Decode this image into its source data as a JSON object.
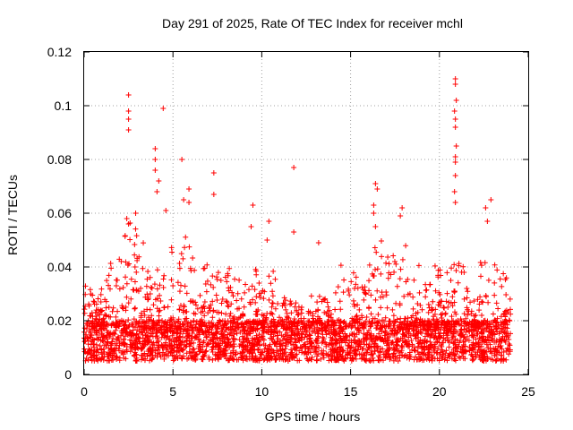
{
  "chart_data": {
    "type": "scatter",
    "title": "Day 291 of 2025, Rate Of TEC Index for receiver mchl",
    "xlabel": "GPS time / hours",
    "ylabel": "ROTI / TECUs",
    "xlim": [
      0,
      25
    ],
    "ylim": [
      0,
      0.12
    ],
    "x_ticks": [
      "0",
      "5",
      "10",
      "15",
      "20",
      "25"
    ],
    "y_ticks": [
      "0",
      "0.02",
      "0.04",
      "0.06",
      "0.08",
      "0.1",
      "0.12"
    ],
    "x_tick_values": [
      0,
      5,
      10,
      15,
      20,
      25
    ],
    "y_tick_values": [
      0,
      0.02,
      0.04,
      0.06,
      0.08,
      0.1,
      0.12
    ],
    "grid": true,
    "marker": "+",
    "series_color": "#ff0000",
    "series": [
      {
        "name": "ROTI",
        "x_range": [
          0,
          24
        ],
        "baseline_band": [
          0.005,
          0.02
        ],
        "envelope": [
          [
            0.0,
            0.045
          ],
          [
            0.5,
            0.03
          ],
          [
            1.0,
            0.035
          ],
          [
            1.5,
            0.045
          ],
          [
            2.0,
            0.048
          ],
          [
            2.5,
            0.06
          ],
          [
            3.0,
            0.055
          ],
          [
            3.5,
            0.05
          ],
          [
            4.0,
            0.055
          ],
          [
            4.5,
            0.05
          ],
          [
            5.0,
            0.048
          ],
          [
            5.5,
            0.05
          ],
          [
            6.0,
            0.055
          ],
          [
            6.5,
            0.045
          ],
          [
            7.0,
            0.042
          ],
          [
            7.5,
            0.04
          ],
          [
            8.0,
            0.042
          ],
          [
            8.5,
            0.04
          ],
          [
            9.0,
            0.038
          ],
          [
            9.5,
            0.045
          ],
          [
            10.0,
            0.035
          ],
          [
            10.5,
            0.045
          ],
          [
            11.0,
            0.032
          ],
          [
            11.5,
            0.03
          ],
          [
            12.0,
            0.03
          ],
          [
            12.5,
            0.032
          ],
          [
            13.0,
            0.035
          ],
          [
            13.5,
            0.033
          ],
          [
            14.0,
            0.035
          ],
          [
            14.5,
            0.045
          ],
          [
            15.0,
            0.042
          ],
          [
            15.5,
            0.035
          ],
          [
            16.0,
            0.045
          ],
          [
            16.5,
            0.055
          ],
          [
            17.0,
            0.045
          ],
          [
            17.5,
            0.048
          ],
          [
            18.0,
            0.055
          ],
          [
            18.5,
            0.045
          ],
          [
            19.0,
            0.042
          ],
          [
            19.5,
            0.04
          ],
          [
            20.0,
            0.043
          ],
          [
            20.5,
            0.04
          ],
          [
            21.0,
            0.05
          ],
          [
            21.5,
            0.045
          ],
          [
            22.0,
            0.04
          ],
          [
            22.5,
            0.045
          ],
          [
            23.0,
            0.048
          ],
          [
            23.5,
            0.04
          ],
          [
            24.0,
            0.035
          ]
        ],
        "outliers": [
          [
            2.5,
            0.104
          ],
          [
            2.5,
            0.098
          ],
          [
            2.5,
            0.095
          ],
          [
            2.5,
            0.091
          ],
          [
            2.4,
            0.058
          ],
          [
            2.5,
            0.056
          ],
          [
            2.9,
            0.06
          ],
          [
            4.45,
            0.099
          ],
          [
            4.0,
            0.084
          ],
          [
            4.0,
            0.08
          ],
          [
            4.0,
            0.076
          ],
          [
            4.1,
            0.068
          ],
          [
            4.2,
            0.072
          ],
          [
            4.6,
            0.061
          ],
          [
            5.5,
            0.08
          ],
          [
            5.6,
            0.065
          ],
          [
            5.9,
            0.069
          ],
          [
            5.9,
            0.064
          ],
          [
            7.3,
            0.075
          ],
          [
            7.3,
            0.067
          ],
          [
            9.5,
            0.063
          ],
          [
            9.4,
            0.055
          ],
          [
            10.4,
            0.057
          ],
          [
            10.3,
            0.05
          ],
          [
            11.8,
            0.077
          ],
          [
            11.8,
            0.053
          ],
          [
            13.2,
            0.049
          ],
          [
            16.4,
            0.071
          ],
          [
            16.5,
            0.069
          ],
          [
            16.3,
            0.063
          ],
          [
            16.3,
            0.06
          ],
          [
            16.4,
            0.055
          ],
          [
            17.9,
            0.062
          ],
          [
            17.8,
            0.059
          ],
          [
            20.9,
            0.11
          ],
          [
            20.9,
            0.108
          ],
          [
            20.95,
            0.102
          ],
          [
            20.85,
            0.098
          ],
          [
            20.9,
            0.095
          ],
          [
            20.9,
            0.092
          ],
          [
            20.95,
            0.085
          ],
          [
            20.9,
            0.081
          ],
          [
            20.9,
            0.079
          ],
          [
            20.9,
            0.074
          ],
          [
            20.85,
            0.068
          ],
          [
            20.9,
            0.064
          ],
          [
            22.9,
            0.065
          ],
          [
            22.6,
            0.062
          ],
          [
            22.7,
            0.057
          ]
        ]
      }
    ]
  }
}
